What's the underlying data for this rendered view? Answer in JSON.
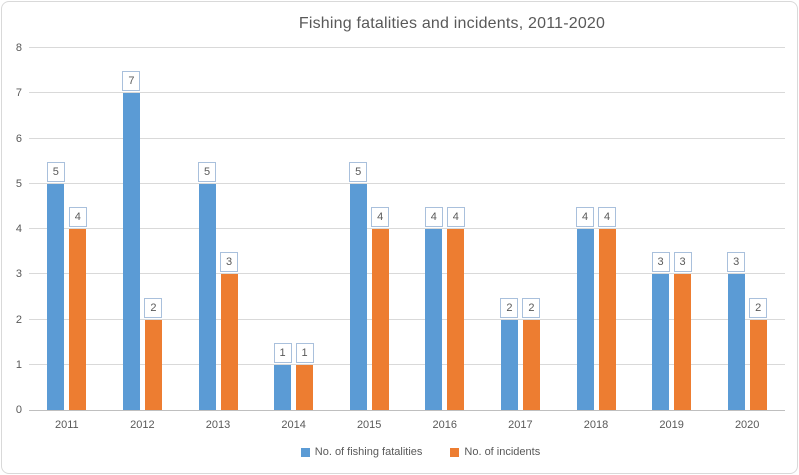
{
  "title": "Fishing fatalities and incidents, 2011-2020",
  "chart_data": {
    "type": "bar",
    "categories": [
      "2011",
      "2012",
      "2013",
      "2014",
      "2015",
      "2016",
      "2017",
      "2018",
      "2019",
      "2020"
    ],
    "series": [
      {
        "name": "No. of fishing fatalities",
        "color": "#5b9bd5",
        "values": [
          5,
          7,
          5,
          1,
          5,
          4,
          2,
          4,
          3,
          3
        ]
      },
      {
        "name": "No. of incidents",
        "color": "#ed7d31",
        "values": [
          4,
          2,
          3,
          1,
          4,
          4,
          2,
          4,
          3,
          2
        ]
      }
    ],
    "title": "Fishing fatalities and incidents, 2011-2020",
    "xlabel": "",
    "ylabel": "",
    "ylim": [
      0,
      8
    ],
    "ytick_interval": 1,
    "yticks": [
      0,
      1,
      2,
      3,
      4,
      5,
      6,
      7,
      8
    ],
    "grid": "horizontal",
    "legend_position": "bottom",
    "data_labels": "boxed"
  },
  "colors": {
    "grid": "#d9d9d9",
    "axis_line": "#bfbfbf",
    "axis_text": "#595959",
    "title_text": "#595959",
    "data_label_border": "#a9c0dc",
    "data_label_text": "#595959",
    "chart_border": "#d9d9d9",
    "background": "#ffffff"
  }
}
